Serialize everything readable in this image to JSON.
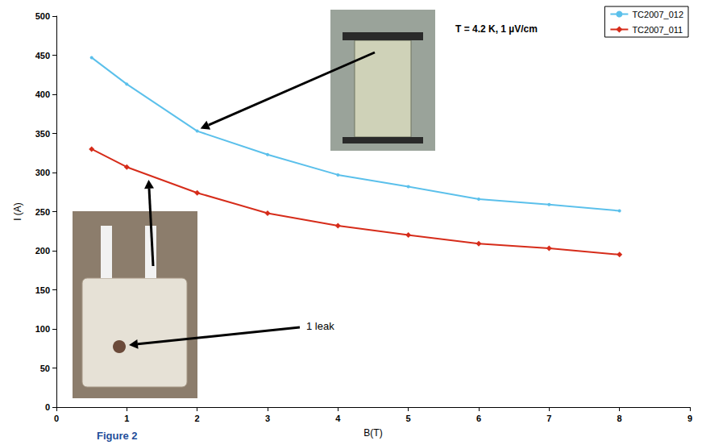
{
  "chart_data": {
    "type": "line",
    "x_label": "B(T)",
    "y_label": "I (A)",
    "x": [
      0.5,
      1,
      2,
      3,
      4,
      5,
      6,
      7,
      8
    ],
    "xlim": [
      0,
      9
    ],
    "xticks": [
      0,
      1,
      2,
      3,
      4,
      5,
      6,
      7,
      8,
      9
    ],
    "ylim": [
      0,
      500
    ],
    "yticks": [
      0,
      50,
      100,
      150,
      200,
      250,
      300,
      350,
      400,
      450,
      500
    ],
    "grid": false,
    "legend": "upper right",
    "series": [
      {
        "name": "TC2007_012",
        "color": "#5bc0eb",
        "marker": "circle",
        "values": [
          447,
          413,
          353,
          323,
          297,
          282,
          266,
          259,
          251
        ]
      },
      {
        "name": "TC2007_011",
        "color": "#d62c1a",
        "marker": "diamond",
        "values": [
          330,
          307,
          274,
          248,
          232,
          220,
          209,
          203,
          195
        ]
      }
    ],
    "annotations": [
      "T = 4.2 K, 1 µV/cm",
      "1 leak"
    ],
    "caption": "Figure 2"
  }
}
